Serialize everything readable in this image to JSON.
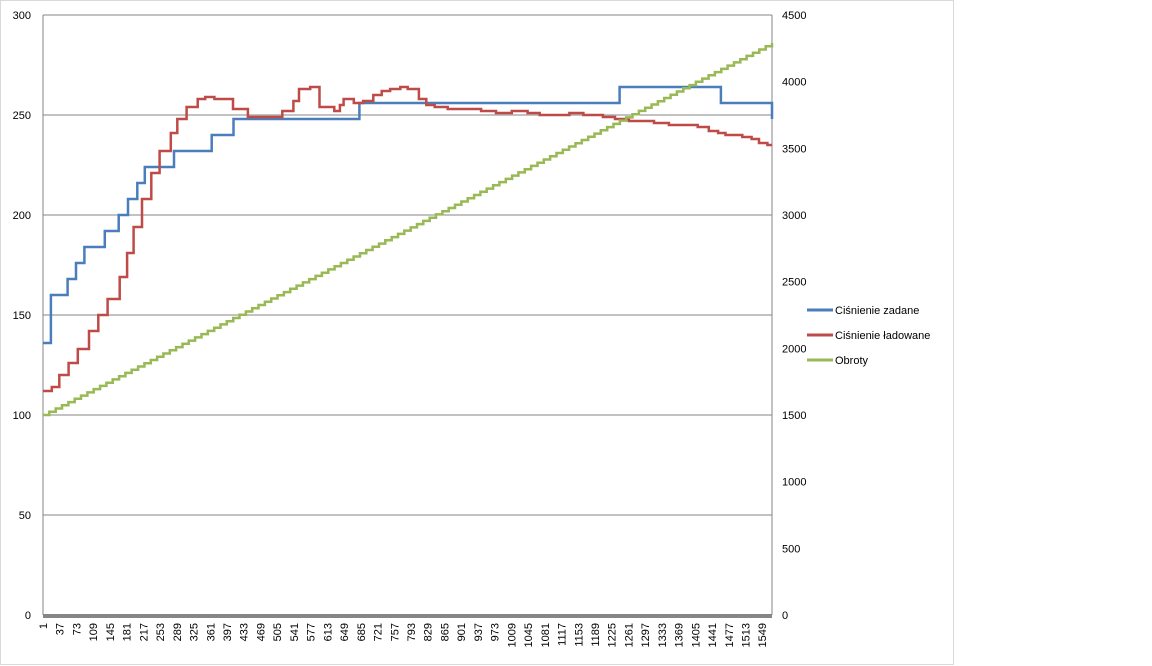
{
  "chart_data": {
    "type": "line",
    "title": "",
    "xlabel": "",
    "ylabel": "",
    "y2label": "",
    "x_tick_labels": [
      "1",
      "37",
      "73",
      "109",
      "145",
      "181",
      "217",
      "253",
      "289",
      "325",
      "361",
      "397",
      "433",
      "469",
      "505",
      "541",
      "577",
      "613",
      "649",
      "685",
      "721",
      "757",
      "793",
      "829",
      "865",
      "901",
      "937",
      "973",
      "1009",
      "1045",
      "1081",
      "1117",
      "1153",
      "1189",
      "1225",
      "1261",
      "1297",
      "1333",
      "1369",
      "1405",
      "1441",
      "1477",
      "1513",
      "1549"
    ],
    "xlim": [
      1,
      1570
    ],
    "ylim": [
      0,
      300
    ],
    "y_ticks": [
      0,
      50,
      100,
      150,
      200,
      250,
      300
    ],
    "y2lim": [
      0,
      4500
    ],
    "y2_ticks": [
      0,
      500,
      1000,
      1500,
      2000,
      2500,
      3000,
      3500,
      4000,
      4500
    ],
    "grid": true,
    "legend_position": "right",
    "series": [
      {
        "name": "Ciśnienie zadane",
        "axis": "left",
        "color": "#4a7ebb",
        "step": true,
        "x": [
          1,
          18,
          54,
          72,
          90,
          134,
          164,
          184,
          204,
          220,
          283,
          364,
          411,
          682,
          1242,
          1460,
          1570
        ],
        "y": [
          136,
          160,
          168,
          176,
          184,
          192,
          200,
          208,
          216,
          224,
          232,
          240,
          248,
          256,
          264,
          256,
          248
        ]
      },
      {
        "name": "Ciśnienie ładowane",
        "axis": "left",
        "color": "#be4b48",
        "step": true,
        "x": [
          1,
          20,
          36,
          56,
          76,
          100,
          120,
          140,
          166,
          182,
          196,
          214,
          234,
          252,
          276,
          290,
          310,
          334,
          350,
          370,
          410,
          442,
          470,
          516,
          540,
          552,
          576,
          596,
          628,
          640,
          648,
          670,
          690,
          712,
          730,
          748,
          770,
          786,
          810,
          826,
          844,
          872,
          902,
          944,
          976,
          1010,
          1044,
          1070,
          1100,
          1134,
          1164,
          1180,
          1206,
          1232,
          1262,
          1290,
          1316,
          1348,
          1376,
          1410,
          1434,
          1454,
          1470,
          1486,
          1506,
          1526,
          1542,
          1560,
          1570
        ],
        "y": [
          112,
          114,
          120,
          126,
          133,
          142,
          150,
          158,
          169,
          181,
          194,
          208,
          221,
          232,
          241,
          248,
          254,
          258,
          259,
          258,
          253,
          249,
          249,
          252,
          257,
          263,
          264,
          254,
          252,
          255,
          258,
          256,
          257,
          260,
          262,
          263,
          264,
          263,
          258,
          255,
          254,
          253,
          253,
          252,
          251,
          252,
          251,
          250,
          250,
          251,
          250,
          250,
          249,
          248,
          247,
          247,
          246,
          245,
          245,
          244,
          242,
          241,
          240,
          240,
          239,
          238,
          236,
          235,
          235
        ]
      },
      {
        "name": "Obroty",
        "axis": "right",
        "color": "#98b954",
        "step": true,
        "x_start": 1,
        "x_end": 1570,
        "y_start": 1500,
        "y_end": 4290,
        "steps": 115
      }
    ]
  }
}
